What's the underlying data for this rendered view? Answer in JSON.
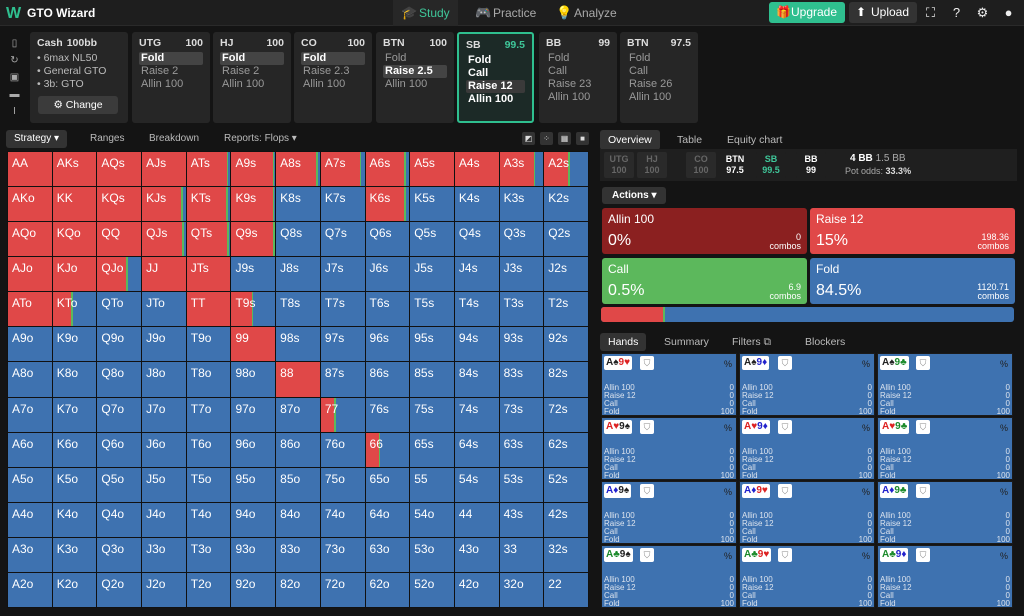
{
  "app": {
    "logo": "W",
    "title": "GTO Wizard"
  },
  "nav": [
    {
      "label": "Study",
      "icon": "graduation-cap-icon",
      "glyph": "🎓"
    },
    {
      "label": "Practice",
      "icon": "gamepad-icon",
      "glyph": "🎮"
    },
    {
      "label": "Analyze",
      "icon": "lightbulb-icon",
      "glyph": "💡"
    }
  ],
  "toolbar": {
    "upgrade": "Upgrade",
    "upload": "Upload"
  },
  "cash": {
    "title": "Cash",
    "depth": "100bb",
    "lines": [
      "6max NL50",
      "General GTO",
      "3b: GTO"
    ],
    "change": "Change"
  },
  "positions": [
    {
      "name": "UTG",
      "stack": "100",
      "options": [
        "Fold",
        "Raise 2",
        "Allin 100"
      ],
      "selected": 0
    },
    {
      "name": "HJ",
      "stack": "100",
      "options": [
        "Fold",
        "Raise 2",
        "Allin 100"
      ],
      "selected": 0
    },
    {
      "name": "CO",
      "stack": "100",
      "options": [
        "Fold",
        "Raise 2.3",
        "Allin 100"
      ],
      "selected": 0
    },
    {
      "name": "BTN",
      "stack": "100",
      "options": [
        "Fold",
        "Raise 2.5",
        "Allin 100"
      ],
      "selected": 1
    },
    {
      "name": "SB",
      "stack": "99.5",
      "options": [
        "Fold",
        "Call",
        "Raise 12",
        "Allin 100"
      ],
      "selected": 2,
      "active": true
    },
    {
      "name": "BB",
      "stack": "99",
      "options": [
        "Fold",
        "Call",
        "Raise 23",
        "Allin 100"
      ]
    },
    {
      "name": "BTN",
      "stack": "97.5",
      "options": [
        "Fold",
        "Call",
        "Raise 26",
        "Allin 100"
      ]
    }
  ],
  "subtabs": [
    "Strategy",
    "Ranges",
    "Breakdown",
    "Reports: Flops"
  ],
  "ranks": [
    "A",
    "K",
    "Q",
    "J",
    "T",
    "9",
    "8",
    "7",
    "6",
    "5",
    "4",
    "3",
    "2"
  ],
  "matrix_red": [
    [
      1,
      1,
      1,
      1,
      0.91,
      0.94,
      0.91,
      0.89,
      0.89,
      1,
      1,
      0.78,
      0.55
    ],
    [
      1,
      1,
      1,
      0.89,
      0.9,
      0.94,
      0,
      0,
      0.88,
      0,
      0,
      0,
      0
    ],
    [
      1,
      1,
      1,
      0.92,
      0.93,
      0.95,
      0,
      0,
      0,
      0,
      0,
      0,
      0
    ],
    [
      1,
      1,
      0.65,
      1,
      1,
      0,
      0,
      0,
      0,
      0,
      0,
      0,
      0
    ],
    [
      1,
      0.43,
      0,
      0,
      1,
      0.46,
      0,
      0,
      0,
      0,
      0,
      0,
      0
    ],
    [
      0,
      0,
      0,
      0,
      0,
      1,
      0,
      0,
      0,
      0,
      0,
      0,
      0
    ],
    [
      0,
      0,
      0,
      0,
      0,
      0,
      1,
      0,
      0,
      0,
      0,
      0,
      0
    ],
    [
      0,
      0,
      0,
      0,
      0,
      0,
      0,
      0.3,
      0,
      0,
      0,
      0,
      0
    ],
    [
      0,
      0,
      0,
      0,
      0,
      0,
      0,
      0,
      0.3,
      0,
      0,
      0,
      0
    ],
    [
      0,
      0,
      0,
      0,
      0,
      0,
      0,
      0,
      0,
      0,
      0,
      0,
      0
    ],
    [
      0,
      0,
      0,
      0,
      0,
      0,
      0,
      0,
      0,
      0,
      0,
      0,
      0
    ],
    [
      0,
      0,
      0,
      0,
      0,
      0,
      0,
      0,
      0,
      0,
      0,
      0,
      0
    ],
    [
      0,
      0,
      0,
      0,
      0,
      0,
      0,
      0,
      0,
      0,
      0,
      0,
      0
    ]
  ],
  "right_tabs": [
    "Overview",
    "Table",
    "Equity chart"
  ],
  "pos_bar": [
    {
      "name": "UTG",
      "val": "100"
    },
    {
      "name": "HJ",
      "val": "100"
    },
    {
      "name": "CO",
      "val": "100"
    },
    {
      "name": "BTN",
      "val": "97.5"
    },
    {
      "name": "SB",
      "val": "99.5"
    },
    {
      "name": "BB",
      "val": "99"
    }
  ],
  "pot": {
    "main": "4 BB",
    "sub": "1.5 BB",
    "odds_label": "Pot odds:",
    "odds": "33.3%"
  },
  "actions_label": "Actions",
  "actions": [
    {
      "name": "Allin 100",
      "pct": "0%",
      "combos": "0",
      "color": "#8b2020"
    },
    {
      "name": "Raise 12",
      "pct": "15%",
      "combos": "198.36",
      "color": "#e04848"
    },
    {
      "name": "Call",
      "pct": "0.5%",
      "combos": "6.9",
      "color": "#5cb85c"
    },
    {
      "name": "Fold",
      "pct": "84.5%",
      "combos": "1120.71",
      "color": "#3e72b0"
    }
  ],
  "combos_label": "combos",
  "freq": {
    "raise": 15,
    "call": 0.5
  },
  "hand_tabs": [
    "Hands",
    "Summary",
    "Filters",
    "Blockers"
  ],
  "hands": [
    [
      "A♠9♥",
      "A♠9♦",
      "A♠9♣"
    ],
    [
      "A♥9♠",
      "A♥9♦",
      "A♥9♣"
    ],
    [
      "A♦9♠",
      "A♦9♥",
      "A♦9♣"
    ],
    [
      "A♣9♠",
      "A♣9♥",
      "A♣9♦"
    ]
  ],
  "hand_actions": [
    "Allin 100",
    "Raise 12",
    "Call",
    "Fold"
  ],
  "hand_values": [
    "0",
    "0",
    "0",
    "100"
  ],
  "pct_sign": "%"
}
